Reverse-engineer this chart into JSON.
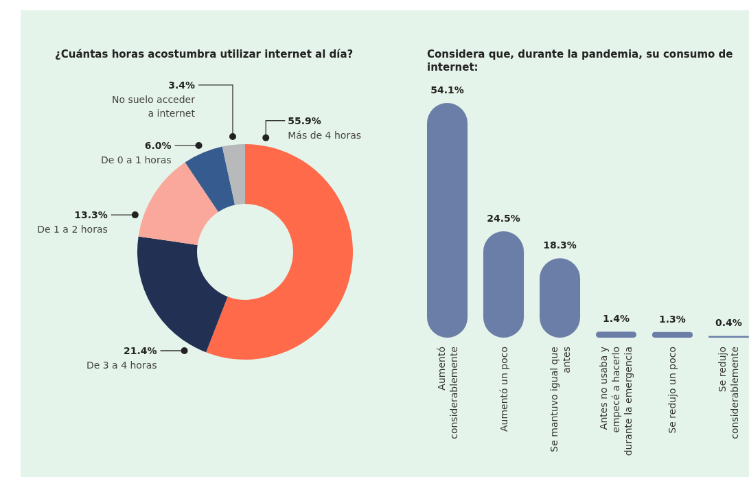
{
  "chart_data": [
    {
      "type": "donut",
      "title": "¿Cuántas horas acostumbra utilizar internet al día?",
      "categories": [
        "Más de 4 horas",
        "De 3 a 4 horas",
        "De 1 a 2 horas",
        "De 0 a 1 horas",
        "No suelo acceder a internet"
      ],
      "values": [
        55.9,
        21.4,
        13.3,
        6.0,
        3.4
      ],
      "value_labels": [
        "55.9%",
        "21.4%",
        "13.3%",
        "6.0%",
        "3.4%"
      ],
      "colors": [
        "#fe6a4a",
        "#223153",
        "#fba89c",
        "#365b8f",
        "#b7b9bb"
      ]
    },
    {
      "type": "bar",
      "title": "Considera que, durante la pandemia, su consumo de internet:",
      "categories": [
        "Aumentó considerablemente",
        "Aumentó un poco",
        "Se mantuvo igual que antes",
        "Antes no usaba y empecé a hacerlo durante la emergencia",
        "Se redujo un poco",
        "Se redujo considerablemente"
      ],
      "values": [
        54.1,
        24.5,
        18.3,
        1.4,
        1.3,
        0.4
      ],
      "value_labels": [
        "54.1%",
        "24.5%",
        "18.3%",
        "1.4%",
        "1.3%",
        "0.4%"
      ],
      "color": "#6a7ea8"
    }
  ]
}
